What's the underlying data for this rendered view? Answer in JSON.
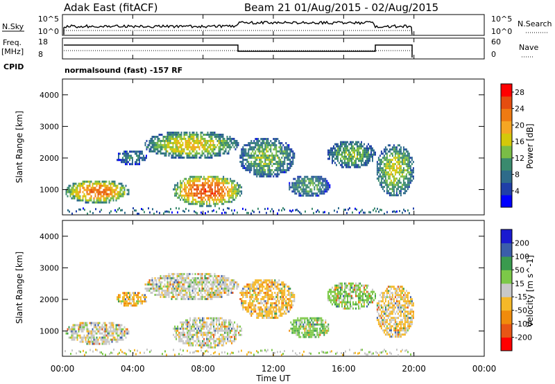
{
  "header": {
    "station": "Adak East (fitACF)",
    "beam_info": "Beam 21 01/Aug/2015 - 02/Aug/2015"
  },
  "panels": {
    "nsky": {
      "left_label": "N.Sky",
      "right_label": "N.Search",
      "left_ticks": [
        "10^5",
        "10^0"
      ],
      "right_ticks": [
        "10^5",
        "10^0"
      ]
    },
    "freq": {
      "left_label_1": "Freq.",
      "left_label_2": "[MHz]",
      "right_label": "Nave",
      "left_ticks": [
        "18",
        "8"
      ],
      "right_ticks": [
        "60",
        "0"
      ]
    },
    "cpid": {
      "label": "CPID",
      "text": "normalsound (fast) -157 RF"
    }
  },
  "xaxis": {
    "title": "Time UT",
    "ticks": [
      "00:00",
      "04:00",
      "08:00",
      "12:00",
      "16:00",
      "20:00",
      "00:00"
    ]
  },
  "colors": {
    "power": [
      "#0000ff",
      "#1f3fa8",
      "#2e6b8a",
      "#3a8a6e",
      "#7abd46",
      "#d4c80a",
      "#f5a623",
      "#ee7a12",
      "#e44d10",
      "#ff0000"
    ],
    "velocity": [
      "#ff0000",
      "#e85515",
      "#f08b0c",
      "#f5b828",
      "#c8c8c8",
      "#7cc948",
      "#3a9a4e",
      "#3b5eaa",
      "#1a1ad0"
    ]
  },
  "chart_data": [
    {
      "type": "heatmap",
      "title": "",
      "xlabel": "Time UT",
      "ylabel": "Slant Range [km]",
      "x_range_hours": [
        0,
        24
      ],
      "ylim": [
        200,
        4500
      ],
      "yticks": [
        1000,
        2000,
        3000,
        4000
      ],
      "colorbar_label": "Power [dB]",
      "colorbar_ticks": [
        4,
        8,
        12,
        16,
        20,
        24,
        28
      ],
      "colorbar_range": [
        0,
        30
      ],
      "data_coverage_hours": [
        0,
        20
      ],
      "echo_regions": [
        {
          "t_start": 0.1,
          "t_end": 3.8,
          "r_min": 600,
          "r_max": 1350,
          "power_peak": 24
        },
        {
          "t_start": 3.0,
          "t_end": 4.8,
          "r_min": 1800,
          "r_max": 2300,
          "power_peak": 10
        },
        {
          "t_start": 4.6,
          "t_end": 10.0,
          "r_min": 2000,
          "r_max": 2900,
          "power_peak": 18
        },
        {
          "t_start": 6.2,
          "t_end": 10.2,
          "r_min": 500,
          "r_max": 1500,
          "power_peak": 26
        },
        {
          "t_start": 10.0,
          "t_end": 13.2,
          "r_min": 1400,
          "r_max": 2700,
          "power_peak": 14
        },
        {
          "t_start": 12.8,
          "t_end": 15.2,
          "r_min": 800,
          "r_max": 1500,
          "power_peak": 12
        },
        {
          "t_start": 15.0,
          "t_end": 17.8,
          "r_min": 1700,
          "r_max": 2600,
          "power_peak": 14
        },
        {
          "t_start": 17.8,
          "t_end": 20.0,
          "r_min": 800,
          "r_max": 2500,
          "power_peak": 16
        }
      ]
    },
    {
      "type": "heatmap",
      "title": "",
      "xlabel": "Time UT",
      "ylabel": "Slant Range [km]",
      "x_range_hours": [
        0,
        24
      ],
      "ylim": [
        200,
        4500
      ],
      "yticks": [
        1000,
        2000,
        3000,
        4000
      ],
      "colorbar_label": "Velocity [m s^-1]",
      "colorbar_ticks": [
        200,
        100,
        50,
        15,
        -15,
        -50,
        -100,
        -200
      ],
      "data_coverage_hours": [
        0,
        20
      ],
      "echo_regions": [
        {
          "t_start": 0.1,
          "t_end": 3.8,
          "r_min": 600,
          "r_max": 1350,
          "velocity": 0
        },
        {
          "t_start": 3.0,
          "t_end": 4.8,
          "r_min": 1800,
          "r_max": 2300,
          "velocity": -40
        },
        {
          "t_start": 4.6,
          "t_end": 10.0,
          "r_min": 2000,
          "r_max": 2900,
          "velocity": 0
        },
        {
          "t_start": 6.2,
          "t_end": 10.2,
          "r_min": 500,
          "r_max": 1500,
          "velocity": 0
        },
        {
          "t_start": 10.0,
          "t_end": 13.2,
          "r_min": 1400,
          "r_max": 2700,
          "velocity": -30
        },
        {
          "t_start": 12.8,
          "t_end": 15.2,
          "r_min": 800,
          "r_max": 1500,
          "velocity": 40
        },
        {
          "t_start": 15.0,
          "t_end": 17.8,
          "r_min": 1700,
          "r_max": 2600,
          "velocity": 30
        },
        {
          "t_start": 17.8,
          "t_end": 20.0,
          "r_min": 800,
          "r_max": 2500,
          "velocity": -20
        }
      ]
    }
  ]
}
